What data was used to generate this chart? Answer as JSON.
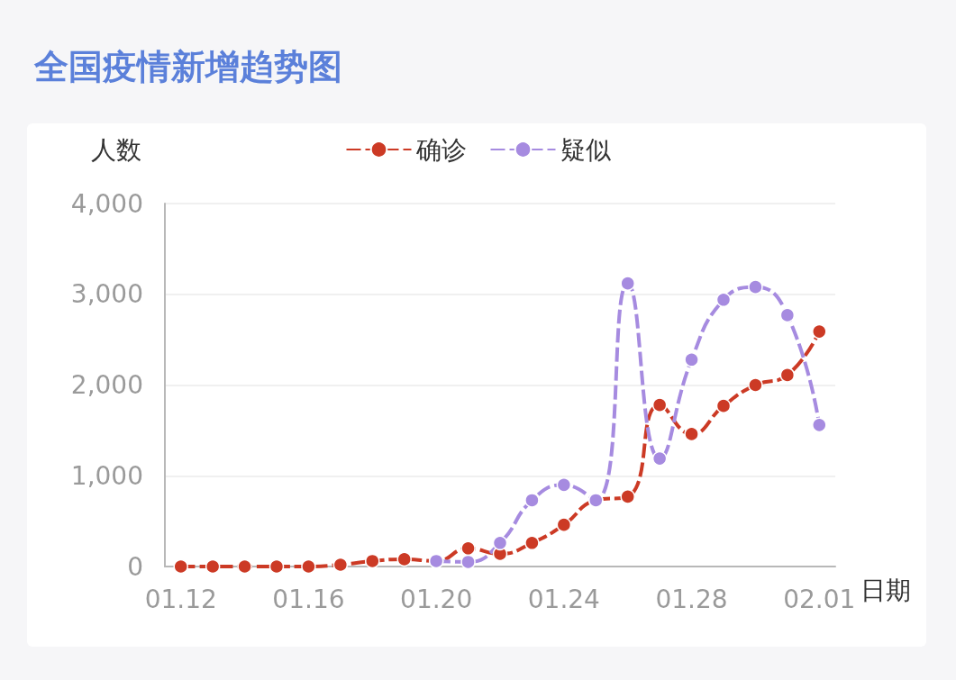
{
  "chart_data": {
    "type": "line",
    "title": "全国疫情新增趋势图",
    "xlabel": "日期",
    "ylabel": "人数",
    "categories": [
      "01.12",
      null,
      null,
      null,
      "01.16",
      null,
      null,
      null,
      "01.20",
      null,
      null,
      null,
      "01.24",
      null,
      null,
      null,
      "01.28",
      null,
      null,
      null,
      "02.01"
    ],
    "series": [
      {
        "name": "确诊",
        "color": "#cc3a25",
        "line_style": "dashed",
        "values": [
          0,
          0,
          0,
          0,
          0,
          20,
          60,
          80,
          60,
          200,
          140,
          260,
          460,
          730,
          770,
          1780,
          1460,
          1770,
          2000,
          2110,
          2590
        ]
      },
      {
        "name": "疑似",
        "color": "#a68be0",
        "line_style": "dashed",
        "values": [
          null,
          null,
          null,
          null,
          null,
          null,
          null,
          null,
          60,
          50,
          260,
          730,
          900,
          730,
          3120,
          1190,
          2280,
          2940,
          3080,
          2770,
          1560
        ]
      }
    ],
    "ylim": [
      0,
      4000
    ],
    "yticks": [
      0,
      {
        "value": 1000,
        "label": "1,000"
      },
      {
        "value": 2000,
        "label": "2,000"
      },
      {
        "value": 3000,
        "label": "3,000"
      },
      {
        "value": 4000,
        "label": "4,000"
      }
    ],
    "grid": "y",
    "legend": "top",
    "marker": "circle"
  }
}
